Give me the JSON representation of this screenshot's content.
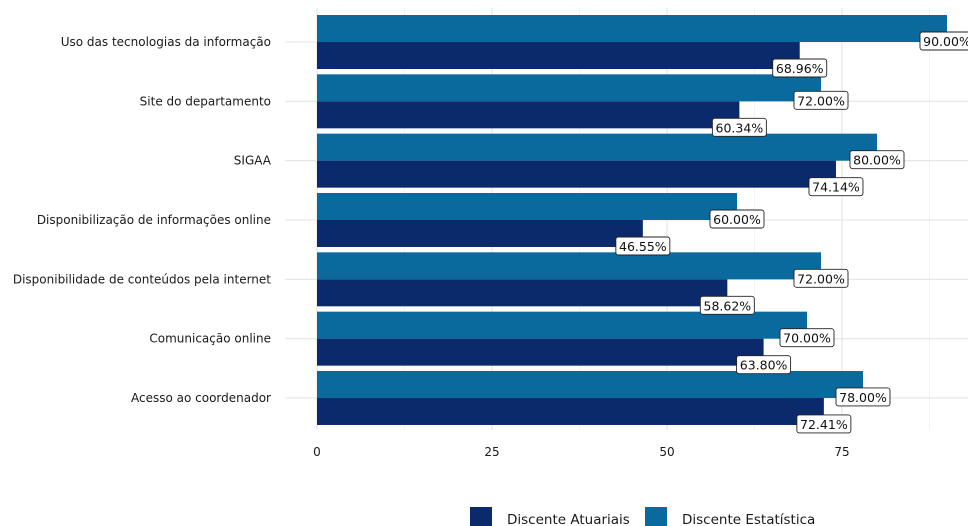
{
  "chart_data": {
    "type": "bar",
    "orientation": "horizontal",
    "categories": [
      "Uso das tecnologias da informação",
      "Site do departamento",
      "SIGAA",
      "Disponibilização de informações online",
      "Disponibilidade de conteúdos pela internet",
      "Comunicação online",
      "Acesso ao coordenador"
    ],
    "series": [
      {
        "name": "Discente Estatística",
        "color": "#0a6a9d",
        "values": [
          90.0,
          72.0,
          80.0,
          60.0,
          72.0,
          70.0,
          78.0
        ],
        "labels": [
          "90.00%",
          "72.00%",
          "80.00%",
          "60.00%",
          "72.00%",
          "70.00%",
          "78.00%"
        ]
      },
      {
        "name": "Discente Atuariais",
        "color": "#0b2a6b",
        "values": [
          68.96,
          60.34,
          74.14,
          46.55,
          58.62,
          63.8,
          72.41
        ],
        "labels": [
          "68.96%",
          "60.34%",
          "74.14%",
          "46.55%",
          "58.62%",
          "63.80%",
          "72.41%"
        ]
      }
    ],
    "xticks": [
      0,
      25,
      50,
      75
    ],
    "xtick_labels": [
      "0",
      "25",
      "50",
      "75"
    ],
    "xlim": [
      0,
      93
    ],
    "grid": true,
    "legend_position": "bottom",
    "legend_order": [
      "Discente Atuariais",
      "Discente Estatística"
    ]
  }
}
